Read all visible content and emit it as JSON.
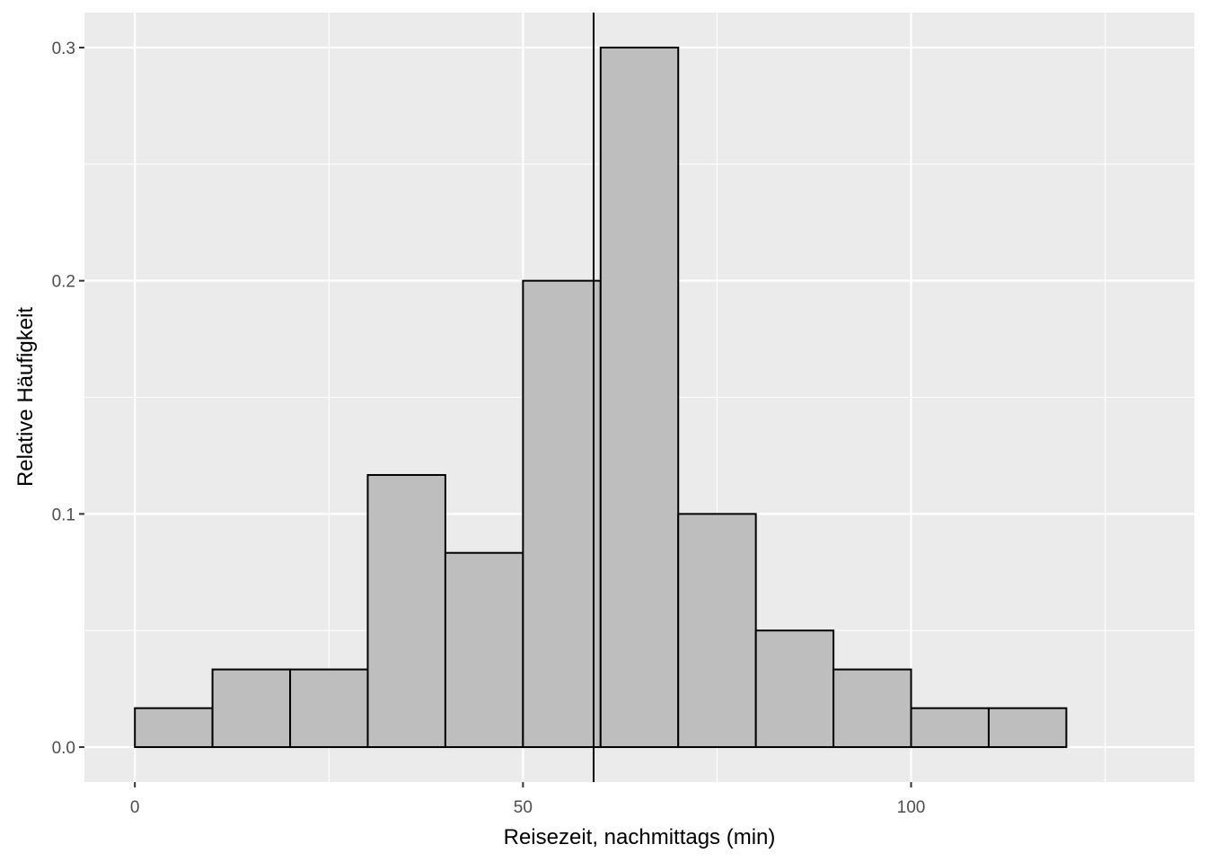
{
  "chart_data": {
    "type": "bar",
    "subtype": "histogram",
    "xlabel": "Reisezeit, nachmittags (min)",
    "ylabel": "Relative Häufigkeit",
    "xlim": [
      -6.5,
      136.5
    ],
    "ylim": [
      -0.015,
      0.315
    ],
    "x_ticks": [
      {
        "value": 0,
        "label": "0"
      },
      {
        "value": 50,
        "label": "50"
      },
      {
        "value": 100,
        "label": "100"
      }
    ],
    "y_ticks": [
      {
        "value": 0.0,
        "label": "0.0"
      },
      {
        "value": 0.1,
        "label": "0.1"
      },
      {
        "value": 0.2,
        "label": "0.2"
      },
      {
        "value": 0.3,
        "label": "0.3"
      }
    ],
    "x_minor_gridlines": [
      25,
      75,
      125
    ],
    "y_minor_gridlines": [
      0.05,
      0.15,
      0.25
    ],
    "bins": [
      {
        "start": 0,
        "end": 10,
        "value": 0.0167
      },
      {
        "start": 10,
        "end": 20,
        "value": 0.0333
      },
      {
        "start": 20,
        "end": 30,
        "value": 0.0333
      },
      {
        "start": 30,
        "end": 40,
        "value": 0.1167
      },
      {
        "start": 40,
        "end": 50,
        "value": 0.0833
      },
      {
        "start": 50,
        "end": 60,
        "value": 0.2
      },
      {
        "start": 60,
        "end": 70,
        "value": 0.3
      },
      {
        "start": 70,
        "end": 80,
        "value": 0.1
      },
      {
        "start": 80,
        "end": 90,
        "value": 0.05
      },
      {
        "start": 90,
        "end": 100,
        "value": 0.0333
      },
      {
        "start": 100,
        "end": 110,
        "value": 0.0167
      },
      {
        "start": 110,
        "end": 120,
        "value": 0.0167
      },
      {
        "start": 120,
        "end": 130,
        "value": 0.0
      }
    ],
    "vline_x": 59.1,
    "grid": true,
    "legend": "none",
    "colors": {
      "panel_background": "#ebebeb",
      "gridline": "#ffffff",
      "bar_fill": "#bebebe",
      "bar_outline": "#000000",
      "vline": "#000000",
      "tick_mark": "#333333",
      "tick_label": "#4d4d4d",
      "axis_title": "#000000"
    }
  }
}
